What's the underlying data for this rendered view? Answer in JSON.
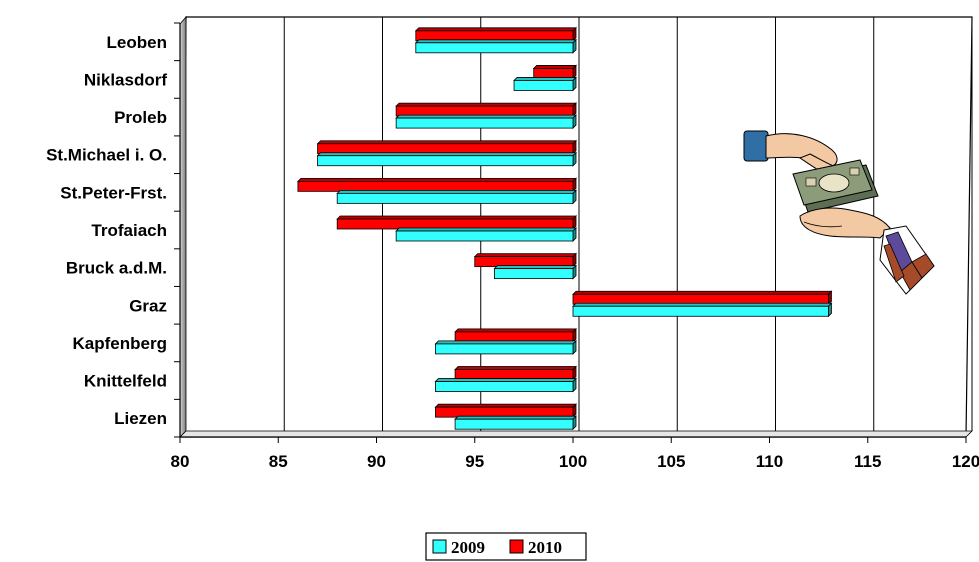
{
  "chart_data": {
    "type": "bar",
    "orientation": "horizontal",
    "categories": [
      "Leoben",
      "Niklasdorf",
      "Proleb",
      "St.Michael i. O.",
      "St.Peter-Frst.",
      "Trofaiach",
      "Bruck a.d.M.",
      "Graz",
      "Kapfenberg",
      "Knittelfeld",
      "Liezen"
    ],
    "series": [
      {
        "name": "2009",
        "color": "#33ffff",
        "values": [
          92,
          97,
          91,
          87,
          88,
          91,
          96,
          113,
          93,
          93,
          94
        ]
      },
      {
        "name": "2010",
        "color": "#ff0000",
        "values": [
          92,
          98,
          91,
          87,
          86,
          88,
          95,
          113,
          94,
          94,
          93
        ]
      }
    ],
    "baseline": 100,
    "xlim": [
      80,
      120
    ],
    "xticks": [
      "80",
      "85",
      "90",
      "95",
      "100",
      "105",
      "110",
      "115",
      "120"
    ],
    "grid": true,
    "legend_position": "bottom-center",
    "title": "",
    "xlabel": "",
    "ylabel": ""
  },
  "decoration": {
    "illustration": "money-handover-clipart"
  }
}
